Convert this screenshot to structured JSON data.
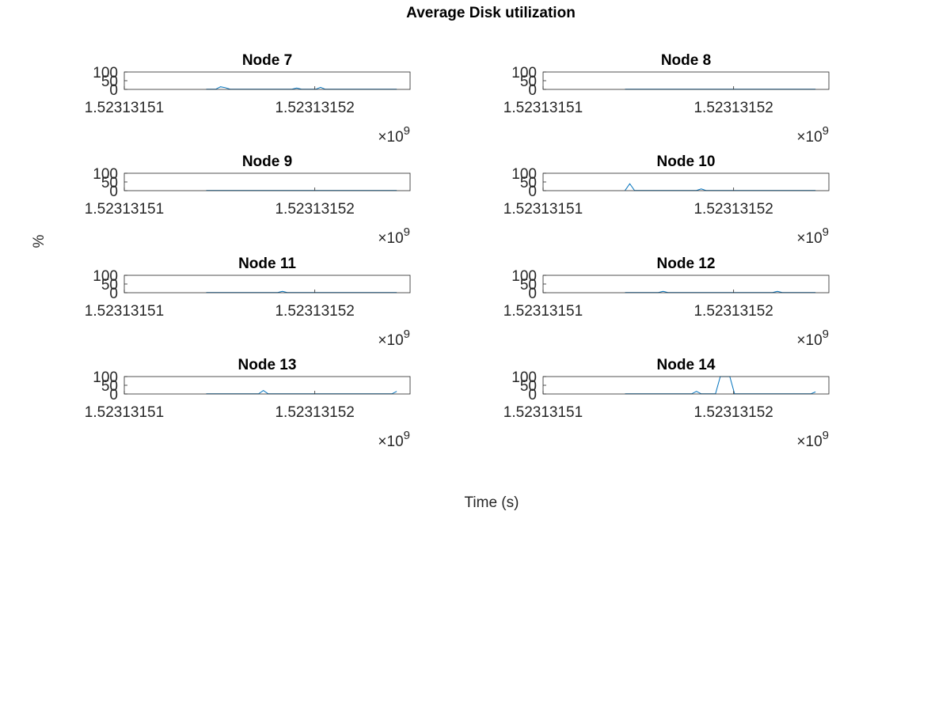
{
  "figure": {
    "title": "Average Disk utilization",
    "xlabel": "Time (s)",
    "ylabel": "%"
  },
  "chart_data": [
    {
      "type": "line",
      "title": "Node 7",
      "color": "#0072bd",
      "x": [
        1523131514.3,
        1523131514.55,
        1523131514.8,
        1523131515.05,
        1523131515.3,
        1523131515.55,
        1523131515.8,
        1523131516.05,
        1523131516.3,
        1523131516.55,
        1523131516.8,
        1523131517.05,
        1523131517.3,
        1523131517.55,
        1523131517.8,
        1523131518.05,
        1523131518.3,
        1523131518.55,
        1523131518.8,
        1523131519.05,
        1523131519.3,
        1523131519.55,
        1523131519.8,
        1523131520.05,
        1523131520.3,
        1523131520.55,
        1523131520.8,
        1523131521.05,
        1523131521.3,
        1523131521.55,
        1523131521.8,
        1523131522.05,
        1523131522.3,
        1523131522.55,
        1523131522.8,
        1523131523.05,
        1523131523.3,
        1523131523.55,
        1523131523.8,
        1523131524.05,
        1523131524.3
      ],
      "values": [
        1,
        1,
        1,
        15,
        10,
        1,
        1,
        1,
        1,
        1,
        1,
        1,
        1,
        1,
        1,
        1,
        1,
        1,
        1,
        8,
        1,
        1,
        1,
        1,
        12,
        1,
        1,
        1,
        1,
        1,
        1,
        1,
        1,
        1,
        1,
        1,
        1,
        1,
        1,
        1,
        1
      ],
      "xlim": [
        1523131510,
        1523131525
      ],
      "xticks": [
        {
          "value": 1523131510,
          "label": "1.52313151"
        },
        {
          "value": 1523131520,
          "label": "1.52313152"
        }
      ],
      "x_exponent": {
        "base": "×10",
        "power": "9"
      },
      "ylim": [
        0,
        100
      ],
      "yticks": [
        0,
        50,
        100
      ]
    },
    {
      "type": "line",
      "title": "Node 8",
      "color": "#0072bd",
      "x": [
        1523131514.3,
        1523131514.55,
        1523131514.8,
        1523131515.05,
        1523131515.3,
        1523131515.55,
        1523131515.8,
        1523131516.05,
        1523131516.3,
        1523131516.55,
        1523131516.8,
        1523131517.05,
        1523131517.3,
        1523131517.55,
        1523131517.8,
        1523131518.05,
        1523131518.3,
        1523131518.55,
        1523131518.8,
        1523131519.05,
        1523131519.3,
        1523131519.55,
        1523131519.8,
        1523131520.05,
        1523131520.3,
        1523131520.55,
        1523131520.8,
        1523131521.05,
        1523131521.3,
        1523131521.55,
        1523131521.8,
        1523131522.05,
        1523131522.3,
        1523131522.55,
        1523131522.8,
        1523131523.05,
        1523131523.3,
        1523131523.55,
        1523131523.8,
        1523131524.05,
        1523131524.3
      ],
      "values": [
        1,
        1,
        1,
        1,
        1,
        1,
        1,
        1,
        1,
        1,
        1,
        1,
        1,
        1,
        1,
        1,
        1,
        1,
        1,
        1,
        1,
        1,
        1,
        1,
        1,
        1,
        1,
        1,
        1,
        1,
        1,
        1,
        1,
        1,
        1,
        1,
        1,
        1,
        1,
        1,
        1
      ],
      "xlim": [
        1523131510,
        1523131525
      ],
      "xticks": [
        {
          "value": 1523131510,
          "label": "1.52313151"
        },
        {
          "value": 1523131520,
          "label": "1.52313152"
        }
      ],
      "x_exponent": {
        "base": "×10",
        "power": "9"
      },
      "ylim": [
        0,
        100
      ],
      "yticks": [
        0,
        50,
        100
      ]
    },
    {
      "type": "line",
      "title": "Node 9",
      "color": "#0072bd",
      "x": [
        1523131514.3,
        1523131514.55,
        1523131514.8,
        1523131515.05,
        1523131515.3,
        1523131515.55,
        1523131515.8,
        1523131516.05,
        1523131516.3,
        1523131516.55,
        1523131516.8,
        1523131517.05,
        1523131517.3,
        1523131517.55,
        1523131517.8,
        1523131518.05,
        1523131518.3,
        1523131518.55,
        1523131518.8,
        1523131519.05,
        1523131519.3,
        1523131519.55,
        1523131519.8,
        1523131520.05,
        1523131520.3,
        1523131520.55,
        1523131520.8,
        1523131521.05,
        1523131521.3,
        1523131521.55,
        1523131521.8,
        1523131522.05,
        1523131522.3,
        1523131522.55,
        1523131522.8,
        1523131523.05,
        1523131523.3,
        1523131523.55,
        1523131523.8,
        1523131524.05,
        1523131524.3
      ],
      "values": [
        1,
        1,
        1,
        1,
        1,
        1,
        1,
        1,
        1,
        1,
        1,
        1,
        1,
        1,
        1,
        1,
        1,
        1,
        1,
        1,
        1,
        1,
        1,
        1,
        1,
        1,
        1,
        1,
        1,
        1,
        1,
        1,
        1,
        1,
        1,
        1,
        1,
        1,
        1,
        1,
        1
      ],
      "xlim": [
        1523131510,
        1523131525
      ],
      "xticks": [
        {
          "value": 1523131510,
          "label": "1.52313151"
        },
        {
          "value": 1523131520,
          "label": "1.52313152"
        }
      ],
      "x_exponent": {
        "base": "×10",
        "power": "9"
      },
      "ylim": [
        0,
        100
      ],
      "yticks": [
        0,
        50,
        100
      ]
    },
    {
      "type": "line",
      "title": "Node 10",
      "color": "#0072bd",
      "x": [
        1523131514.3,
        1523131514.55,
        1523131514.8,
        1523131515.05,
        1523131515.3,
        1523131515.55,
        1523131515.8,
        1523131516.05,
        1523131516.3,
        1523131516.55,
        1523131516.8,
        1523131517.05,
        1523131517.3,
        1523131517.55,
        1523131517.8,
        1523131518.05,
        1523131518.3,
        1523131518.55,
        1523131518.8,
        1523131519.05,
        1523131519.3,
        1523131519.55,
        1523131519.8,
        1523131520.05,
        1523131520.3,
        1523131520.55,
        1523131520.8,
        1523131521.05,
        1523131521.3,
        1523131521.55,
        1523131521.8,
        1523131522.05,
        1523131522.3,
        1523131522.55,
        1523131522.8,
        1523131523.05,
        1523131523.3,
        1523131523.55,
        1523131523.8,
        1523131524.05,
        1523131524.3
      ],
      "values": [
        1,
        40,
        1,
        1,
        1,
        1,
        1,
        1,
        1,
        1,
        1,
        1,
        1,
        1,
        1,
        1,
        10,
        1,
        1,
        1,
        1,
        1,
        1,
        1,
        1,
        1,
        1,
        1,
        1,
        1,
        1,
        1,
        1,
        1,
        1,
        1,
        1,
        1,
        1,
        1,
        1
      ],
      "xlim": [
        1523131510,
        1523131525
      ],
      "xticks": [
        {
          "value": 1523131510,
          "label": "1.52313151"
        },
        {
          "value": 1523131520,
          "label": "1.52313152"
        }
      ],
      "x_exponent": {
        "base": "×10",
        "power": "9"
      },
      "ylim": [
        0,
        100
      ],
      "yticks": [
        0,
        50,
        100
      ]
    },
    {
      "type": "line",
      "title": "Node 11",
      "color": "#0072bd",
      "x": [
        1523131514.3,
        1523131514.55,
        1523131514.8,
        1523131515.05,
        1523131515.3,
        1523131515.55,
        1523131515.8,
        1523131516.05,
        1523131516.3,
        1523131516.55,
        1523131516.8,
        1523131517.05,
        1523131517.3,
        1523131517.55,
        1523131517.8,
        1523131518.05,
        1523131518.3,
        1523131518.55,
        1523131518.8,
        1523131519.05,
        1523131519.3,
        1523131519.55,
        1523131519.8,
        1523131520.05,
        1523131520.3,
        1523131520.55,
        1523131520.8,
        1523131521.05,
        1523131521.3,
        1523131521.55,
        1523131521.8,
        1523131522.05,
        1523131522.3,
        1523131522.55,
        1523131522.8,
        1523131523.05,
        1523131523.3,
        1523131523.55,
        1523131523.8,
        1523131524.05,
        1523131524.3
      ],
      "values": [
        1,
        1,
        1,
        1,
        1,
        1,
        1,
        1,
        1,
        1,
        1,
        1,
        1,
        1,
        1,
        1,
        8,
        1,
        1,
        1,
        1,
        1,
        1,
        1,
        1,
        1,
        1,
        1,
        1,
        1,
        1,
        1,
        1,
        1,
        1,
        1,
        1,
        1,
        1,
        1,
        1
      ],
      "xlim": [
        1523131510,
        1523131525
      ],
      "xticks": [
        {
          "value": 1523131510,
          "label": "1.52313151"
        },
        {
          "value": 1523131520,
          "label": "1.52313152"
        }
      ],
      "x_exponent": {
        "base": "×10",
        "power": "9"
      },
      "ylim": [
        0,
        100
      ],
      "yticks": [
        0,
        50,
        100
      ]
    },
    {
      "type": "line",
      "title": "Node 12",
      "color": "#0072bd",
      "x": [
        1523131514.3,
        1523131514.55,
        1523131514.8,
        1523131515.05,
        1523131515.3,
        1523131515.55,
        1523131515.8,
        1523131516.05,
        1523131516.3,
        1523131516.55,
        1523131516.8,
        1523131517.05,
        1523131517.3,
        1523131517.55,
        1523131517.8,
        1523131518.05,
        1523131518.3,
        1523131518.55,
        1523131518.8,
        1523131519.05,
        1523131519.3,
        1523131519.55,
        1523131519.8,
        1523131520.05,
        1523131520.3,
        1523131520.55,
        1523131520.8,
        1523131521.05,
        1523131521.3,
        1523131521.55,
        1523131521.8,
        1523131522.05,
        1523131522.3,
        1523131522.55,
        1523131522.8,
        1523131523.05,
        1523131523.3,
        1523131523.55,
        1523131523.8,
        1523131524.05,
        1523131524.3
      ],
      "values": [
        1,
        1,
        1,
        1,
        1,
        1,
        1,
        1,
        8,
        1,
        1,
        1,
        1,
        1,
        1,
        1,
        1,
        1,
        1,
        1,
        1,
        1,
        1,
        1,
        1,
        1,
        1,
        1,
        1,
        1,
        1,
        1,
        8,
        1,
        1,
        1,
        1,
        1,
        1,
        1,
        1
      ],
      "xlim": [
        1523131510,
        1523131525
      ],
      "xticks": [
        {
          "value": 1523131510,
          "label": "1.52313151"
        },
        {
          "value": 1523131520,
          "label": "1.52313152"
        }
      ],
      "x_exponent": {
        "base": "×10",
        "power": "9"
      },
      "ylim": [
        0,
        100
      ],
      "yticks": [
        0,
        50,
        100
      ]
    },
    {
      "type": "line",
      "title": "Node 13",
      "color": "#0072bd",
      "x": [
        1523131514.3,
        1523131514.55,
        1523131514.8,
        1523131515.05,
        1523131515.3,
        1523131515.55,
        1523131515.8,
        1523131516.05,
        1523131516.3,
        1523131516.55,
        1523131516.8,
        1523131517.05,
        1523131517.3,
        1523131517.55,
        1523131517.8,
        1523131518.05,
        1523131518.3,
        1523131518.55,
        1523131518.8,
        1523131519.05,
        1523131519.3,
        1523131519.55,
        1523131519.8,
        1523131520.05,
        1523131520.3,
        1523131520.55,
        1523131520.8,
        1523131521.05,
        1523131521.3,
        1523131521.55,
        1523131521.8,
        1523131522.05,
        1523131522.3,
        1523131522.55,
        1523131522.8,
        1523131523.05,
        1523131523.3,
        1523131523.55,
        1523131523.8,
        1523131524.05,
        1523131524.3
      ],
      "values": [
        1,
        1,
        1,
        1,
        1,
        1,
        1,
        1,
        1,
        1,
        1,
        1,
        20,
        1,
        1,
        1,
        1,
        1,
        1,
        1,
        1,
        1,
        1,
        1,
        1,
        1,
        1,
        1,
        1,
        1,
        1,
        1,
        1,
        1,
        1,
        1,
        1,
        1,
        1,
        1,
        15
      ],
      "xlim": [
        1523131510,
        1523131525
      ],
      "xticks": [
        {
          "value": 1523131510,
          "label": "1.52313151"
        },
        {
          "value": 1523131520,
          "label": "1.52313152"
        }
      ],
      "x_exponent": {
        "base": "×10",
        "power": "9"
      },
      "ylim": [
        0,
        100
      ],
      "yticks": [
        0,
        50,
        100
      ]
    },
    {
      "type": "line",
      "title": "Node 14",
      "color": "#0072bd",
      "x": [
        1523131514.3,
        1523131514.55,
        1523131514.8,
        1523131515.05,
        1523131515.3,
        1523131515.55,
        1523131515.8,
        1523131516.05,
        1523131516.3,
        1523131516.55,
        1523131516.8,
        1523131517.05,
        1523131517.3,
        1523131517.55,
        1523131517.8,
        1523131518.05,
        1523131518.3,
        1523131518.55,
        1523131518.8,
        1523131519.05,
        1523131519.3,
        1523131519.55,
        1523131519.8,
        1523131520.05,
        1523131520.3,
        1523131520.55,
        1523131520.8,
        1523131521.05,
        1523131521.3,
        1523131521.55,
        1523131521.8,
        1523131522.05,
        1523131522.3,
        1523131522.55,
        1523131522.8,
        1523131523.05,
        1523131523.3,
        1523131523.55,
        1523131523.8,
        1523131524.05,
        1523131524.3
      ],
      "values": [
        1,
        1,
        1,
        1,
        1,
        1,
        1,
        1,
        1,
        1,
        1,
        1,
        1,
        1,
        1,
        15,
        1,
        1,
        1,
        1,
        100,
        100,
        100,
        1,
        1,
        1,
        1,
        1,
        1,
        1,
        1,
        1,
        1,
        1,
        1,
        1,
        1,
        1,
        1,
        1,
        12
      ],
      "xlim": [
        1523131510,
        1523131525
      ],
      "xticks": [
        {
          "value": 1523131510,
          "label": "1.52313151"
        },
        {
          "value": 1523131520,
          "label": "1.52313152"
        }
      ],
      "x_exponent": {
        "base": "×10",
        "power": "9"
      },
      "ylim": [
        0,
        100
      ],
      "yticks": [
        0,
        50,
        100
      ]
    }
  ]
}
